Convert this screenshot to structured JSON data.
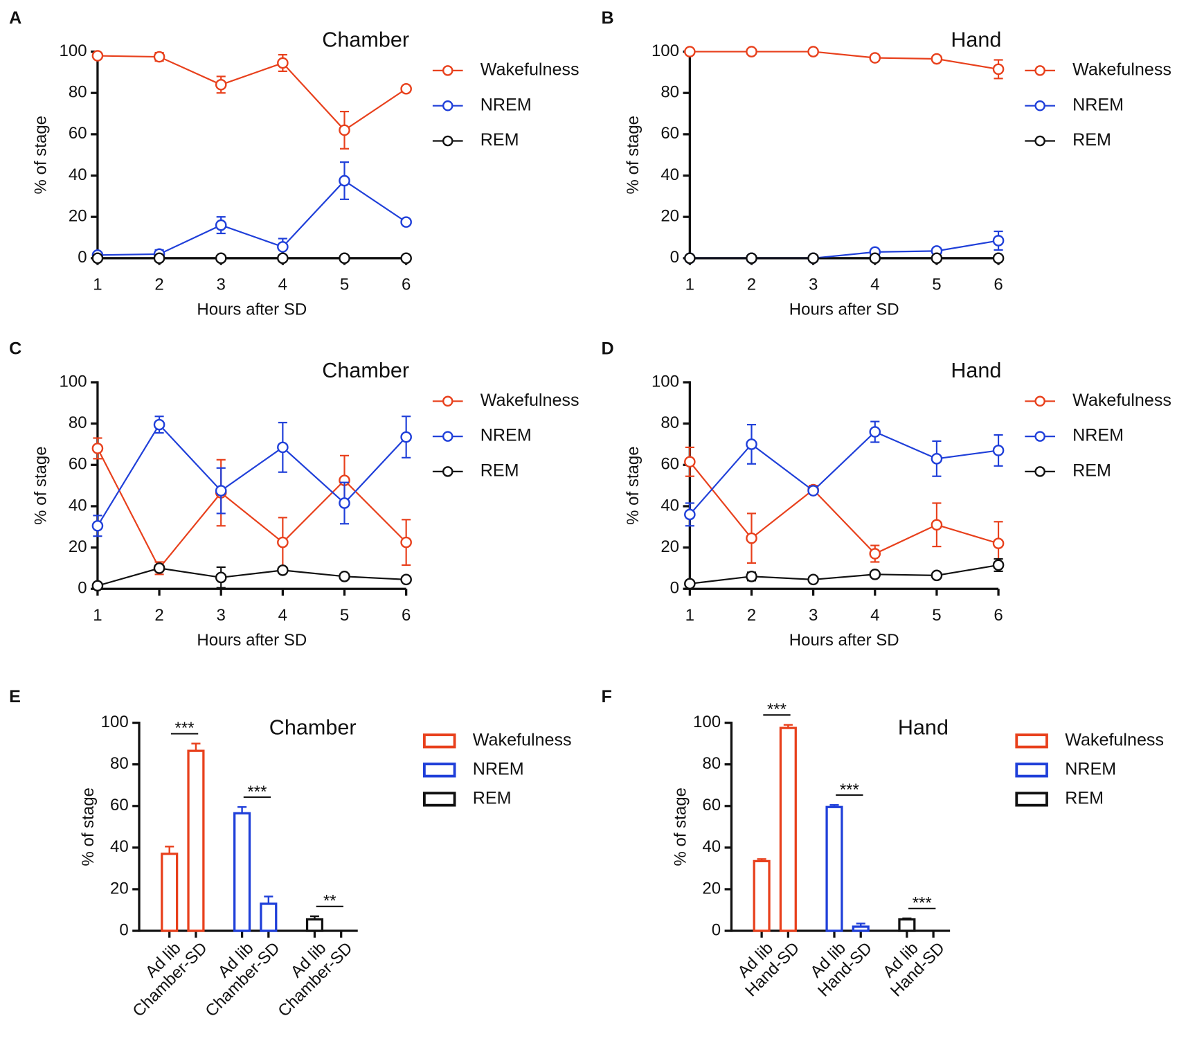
{
  "chart_data": [
    {
      "type": "line",
      "panel": "A",
      "title": "Chamber",
      "xlabel": "Hours after SD",
      "ylabel": "% of stage",
      "x": [
        1,
        2,
        3,
        4,
        5,
        6
      ],
      "xlim": [
        1,
        6
      ],
      "xticks": [
        1,
        2,
        3,
        4,
        5,
        6
      ],
      "ylim": [
        0,
        100
      ],
      "yticks": [
        0,
        20,
        40,
        60,
        80,
        100
      ],
      "series": [
        {
          "name": "Wakefulness",
          "color": "#e8401c",
          "values": [
            98,
            97.5,
            84,
            94.5,
            62,
            82
          ],
          "errors": [
            1,
            2,
            4,
            4,
            9,
            1
          ]
        },
        {
          "name": "NREM",
          "color": "#1f3fd9",
          "values": [
            1.5,
            2,
            16,
            5.5,
            37.5,
            17.5
          ],
          "errors": [
            1,
            2,
            4,
            4,
            9,
            1
          ]
        },
        {
          "name": "REM",
          "color": "#111111",
          "values": [
            0,
            0,
            0,
            0,
            0,
            0
          ],
          "errors": [
            0,
            0,
            0,
            0,
            0,
            0
          ]
        }
      ]
    },
    {
      "type": "line",
      "panel": "B",
      "title": "Hand",
      "xlabel": "Hours after SD",
      "ylabel": "% of stage",
      "x": [
        1,
        2,
        3,
        4,
        5,
        6
      ],
      "xlim": [
        1,
        6
      ],
      "xticks": [
        1,
        2,
        3,
        4,
        5,
        6
      ],
      "ylim": [
        0,
        100
      ],
      "yticks": [
        0,
        20,
        40,
        60,
        80,
        100
      ],
      "series": [
        {
          "name": "Wakefulness",
          "color": "#e8401c",
          "values": [
            100,
            100,
            100,
            97,
            96.5,
            91.5
          ],
          "errors": [
            0,
            0,
            0,
            1,
            1,
            4.5
          ]
        },
        {
          "name": "NREM",
          "color": "#1f3fd9",
          "values": [
            0,
            0,
            0,
            3,
            3.5,
            8.5
          ],
          "errors": [
            0,
            0,
            0,
            1,
            1,
            4.5
          ]
        },
        {
          "name": "REM",
          "color": "#111111",
          "values": [
            0,
            0,
            0,
            0,
            0,
            0
          ],
          "errors": [
            0,
            0,
            0,
            0,
            0,
            0
          ]
        }
      ]
    },
    {
      "type": "line",
      "panel": "C",
      "title": "Chamber",
      "xlabel": "Hours after SD",
      "ylabel": "% of stage",
      "x": [
        1,
        2,
        3,
        4,
        5,
        6
      ],
      "xlim": [
        1,
        6
      ],
      "xticks": [
        1,
        2,
        3,
        4,
        5,
        6
      ],
      "ylim": [
        0,
        100
      ],
      "yticks": [
        0,
        20,
        40,
        60,
        80,
        100
      ],
      "series": [
        {
          "name": "Wakefulness",
          "color": "#e8401c",
          "values": [
            68,
            10,
            46.5,
            22.5,
            52.5,
            22.5
          ],
          "errors": [
            5,
            3,
            16,
            12,
            12,
            11
          ]
        },
        {
          "name": "NREM",
          "color": "#1f3fd9",
          "values": [
            30.5,
            79.5,
            47.5,
            68.5,
            41.5,
            73.5
          ],
          "errors": [
            5,
            4,
            11,
            12,
            10,
            10
          ]
        },
        {
          "name": "REM",
          "color": "#111111",
          "values": [
            1.5,
            10,
            5.5,
            9,
            6,
            4.5
          ],
          "errors": [
            0.5,
            1,
            5,
            1,
            0.5,
            1
          ]
        }
      ]
    },
    {
      "type": "line",
      "panel": "D",
      "title": "Hand",
      "xlabel": "Hours after SD",
      "ylabel": "% of stage",
      "x": [
        1,
        2,
        3,
        4,
        5,
        6
      ],
      "xlim": [
        1,
        6
      ],
      "xticks": [
        1,
        2,
        3,
        4,
        5,
        6
      ],
      "ylim": [
        0,
        100
      ],
      "yticks": [
        0,
        20,
        40,
        60,
        80,
        100
      ],
      "series": [
        {
          "name": "Wakefulness",
          "color": "#e8401c",
          "values": [
            61.5,
            24.5,
            48,
            17,
            31,
            22
          ],
          "errors": [
            7,
            12,
            2,
            4,
            10.5,
            10.5
          ]
        },
        {
          "name": "NREM",
          "color": "#1f3fd9",
          "values": [
            36,
            70,
            47.5,
            76,
            63,
            67
          ],
          "errors": [
            5.5,
            9.5,
            1.5,
            5,
            8.5,
            7.5
          ]
        },
        {
          "name": "REM",
          "color": "#111111",
          "values": [
            2.5,
            6,
            4.5,
            7,
            6.5,
            11.5
          ],
          "errors": [
            0.5,
            2,
            0.5,
            0.5,
            0.5,
            3
          ]
        }
      ]
    },
    {
      "type": "bar",
      "panel": "E",
      "title": "Chamber",
      "ylabel": "% of stage",
      "categories": [
        "Ad lib",
        "Chamber-SD",
        "Ad lib",
        "Chamber-SD",
        "Ad lib",
        "Chamber-SD"
      ],
      "ylim": [
        0,
        100
      ],
      "yticks": [
        0,
        20,
        40,
        60,
        80,
        100
      ],
      "series": [
        {
          "name": "Wakefulness",
          "color": "#e8401c",
          "values": [
            37,
            86.5,
            null,
            null,
            null,
            null
          ],
          "errors": [
            3.5,
            3.5,
            null,
            null,
            null,
            null
          ],
          "significance": "***"
        },
        {
          "name": "NREM",
          "color": "#1f3fd9",
          "values": [
            null,
            null,
            56.5,
            13,
            null,
            null
          ],
          "errors": [
            null,
            null,
            3,
            3.5,
            null,
            null
          ],
          "significance": "***"
        },
        {
          "name": "REM",
          "color": "#111111",
          "values": [
            null,
            null,
            null,
            null,
            5.5,
            0
          ],
          "errors": [
            null,
            null,
            null,
            null,
            1.5,
            0
          ],
          "significance": "**"
        }
      ]
    },
    {
      "type": "bar",
      "panel": "F",
      "title": "Hand",
      "ylabel": "% of stage",
      "categories": [
        "Ad lib",
        "Hand-SD",
        "Ad lib",
        "Hand-SD",
        "Ad lib",
        "Hand-SD"
      ],
      "ylim": [
        0,
        100
      ],
      "yticks": [
        0,
        20,
        40,
        60,
        80,
        100
      ],
      "series": [
        {
          "name": "Wakefulness",
          "color": "#e8401c",
          "values": [
            33.5,
            97.5,
            null,
            null,
            null,
            null
          ],
          "errors": [
            1,
            1.5,
            null,
            null,
            null,
            null
          ],
          "significance": "***"
        },
        {
          "name": "NREM",
          "color": "#1f3fd9",
          "values": [
            null,
            null,
            59.5,
            2,
            null,
            null
          ],
          "errors": [
            null,
            null,
            1,
            1.5,
            null,
            null
          ],
          "significance": "***"
        },
        {
          "name": "REM",
          "color": "#111111",
          "values": [
            null,
            null,
            null,
            null,
            5.5,
            0
          ],
          "errors": [
            null,
            null,
            null,
            null,
            0.5,
            0
          ],
          "significance": "***"
        }
      ]
    }
  ]
}
